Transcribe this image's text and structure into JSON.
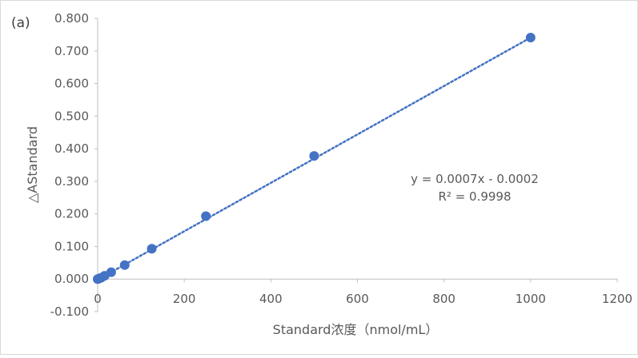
{
  "panel_label": "(a)",
  "chart_data": {
    "type": "scatter",
    "xlabel": "Standard浓度（nmol/mL）",
    "ylabel": "△AStandard",
    "xlim": [
      0,
      1200
    ],
    "ylim": [
      -0.1,
      0.8
    ],
    "x_ticks": [
      0,
      200,
      400,
      600,
      800,
      1000,
      1200
    ],
    "y_ticks": [
      -0.1,
      0.0,
      0.1,
      0.2,
      0.3,
      0.4,
      0.5,
      0.6,
      0.7,
      0.8
    ],
    "grid": false,
    "series": [
      {
        "color": "#4472c4",
        "points": [
          [
            0,
            0.0
          ],
          [
            2,
            0.001
          ],
          [
            4,
            0.002
          ],
          [
            8,
            0.004
          ],
          [
            16,
            0.01
          ],
          [
            31.25,
            0.021
          ],
          [
            62.5,
            0.043
          ],
          [
            125,
            0.093
          ],
          [
            250,
            0.193
          ],
          [
            500,
            0.378
          ],
          [
            1000,
            0.741
          ]
        ]
      }
    ],
    "trendline": {
      "style": "dotted",
      "color": "#4472c4",
      "x_range": [
        0,
        1000
      ],
      "y_range": [
        -0.002,
        0.741
      ],
      "equation": "y = 0.0007x - 0.0002",
      "r_squared": "R² = 0.9998"
    }
  }
}
